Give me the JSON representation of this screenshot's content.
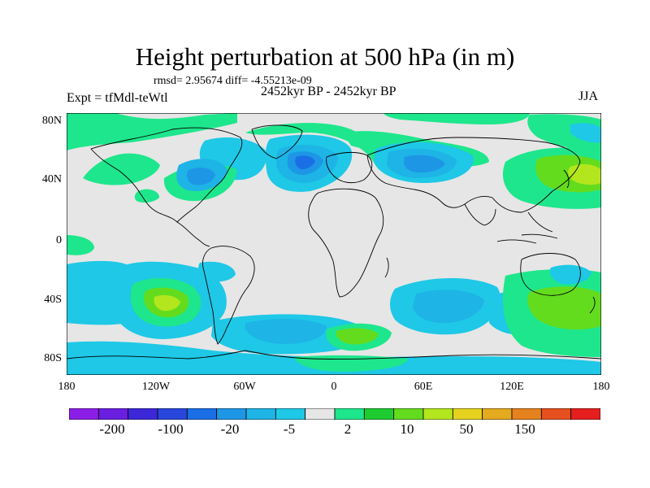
{
  "title": "Height perturbation at 500 hPa (in m)",
  "stats": "rmsd= 2.95674 diff= -4.55213e-09",
  "expt_label": "Expt = tfMdl-teWtl",
  "period_label": "2452kyr BP - 2452kyr BP",
  "season_label": "JJA",
  "map": {
    "projection": "cylindrical equidistant",
    "lon_range": [
      -180,
      180
    ],
    "lat_range": [
      -90,
      90
    ],
    "y_ticks": [
      "80N",
      "40N",
      "0",
      "40S",
      "80S"
    ],
    "x_ticks": [
      "180",
      "120W",
      "60W",
      "0",
      "60E",
      "120E",
      "180"
    ]
  },
  "colorbar": {
    "colors": [
      "#8b1ee6",
      "#6a1fe0",
      "#3c28d8",
      "#2846dc",
      "#1a6ee6",
      "#1e96e6",
      "#1eb4e6",
      "#1ec8e6",
      "#e6e6e6",
      "#1ee68c",
      "#1ecc32",
      "#64dc1e",
      "#b4e61e",
      "#e6d21e",
      "#e6aa1e",
      "#e6821e",
      "#e6501e",
      "#e61e1e"
    ],
    "labels": [
      "-200",
      "-100",
      "-20",
      "-5",
      "2",
      "10",
      "50",
      "150"
    ]
  }
}
